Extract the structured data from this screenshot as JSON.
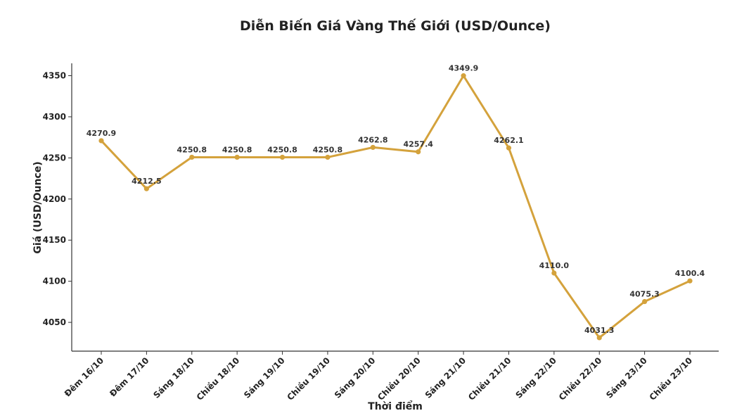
{
  "chart_data": {
    "type": "line",
    "title": "Diễn Biến Giá Vàng Thế Giới (USD/Ounce)",
    "xlabel": "Thời điểm",
    "ylabel": "Giá (USD/Ounce)",
    "ylim": [
      4015,
      4365
    ],
    "yticks": [
      4050,
      4100,
      4150,
      4200,
      4250,
      4300,
      4350
    ],
    "grid": false,
    "color": "#D4A23C",
    "categories": [
      "Đêm 16/10",
      "Đêm 17/10",
      "Sáng 18/10",
      "Chiều 18/10",
      "Sáng 19/10",
      "Chiều 19/10",
      "Sáng 20/10",
      "Chiều 20/10",
      "Sáng 21/10",
      "Chiều 21/10",
      "Sáng 22/10",
      "Chiều 22/10",
      "Sáng 23/10",
      "Chiều 23/10"
    ],
    "values": [
      4270.9,
      4212.5,
      4250.8,
      4250.8,
      4250.8,
      4250.8,
      4262.8,
      4257.4,
      4349.9,
      4262.1,
      4110.0,
      4031.3,
      4075.3,
      4100.4
    ],
    "value_labels": [
      "4270.9",
      "4212.5",
      "4250.8",
      "4250.8",
      "4250.8",
      "4250.8",
      "4262.8",
      "4257.4",
      "4349.9",
      "4262.1",
      "4110.0",
      "4031.3",
      "4075.3",
      "4100.4"
    ]
  }
}
